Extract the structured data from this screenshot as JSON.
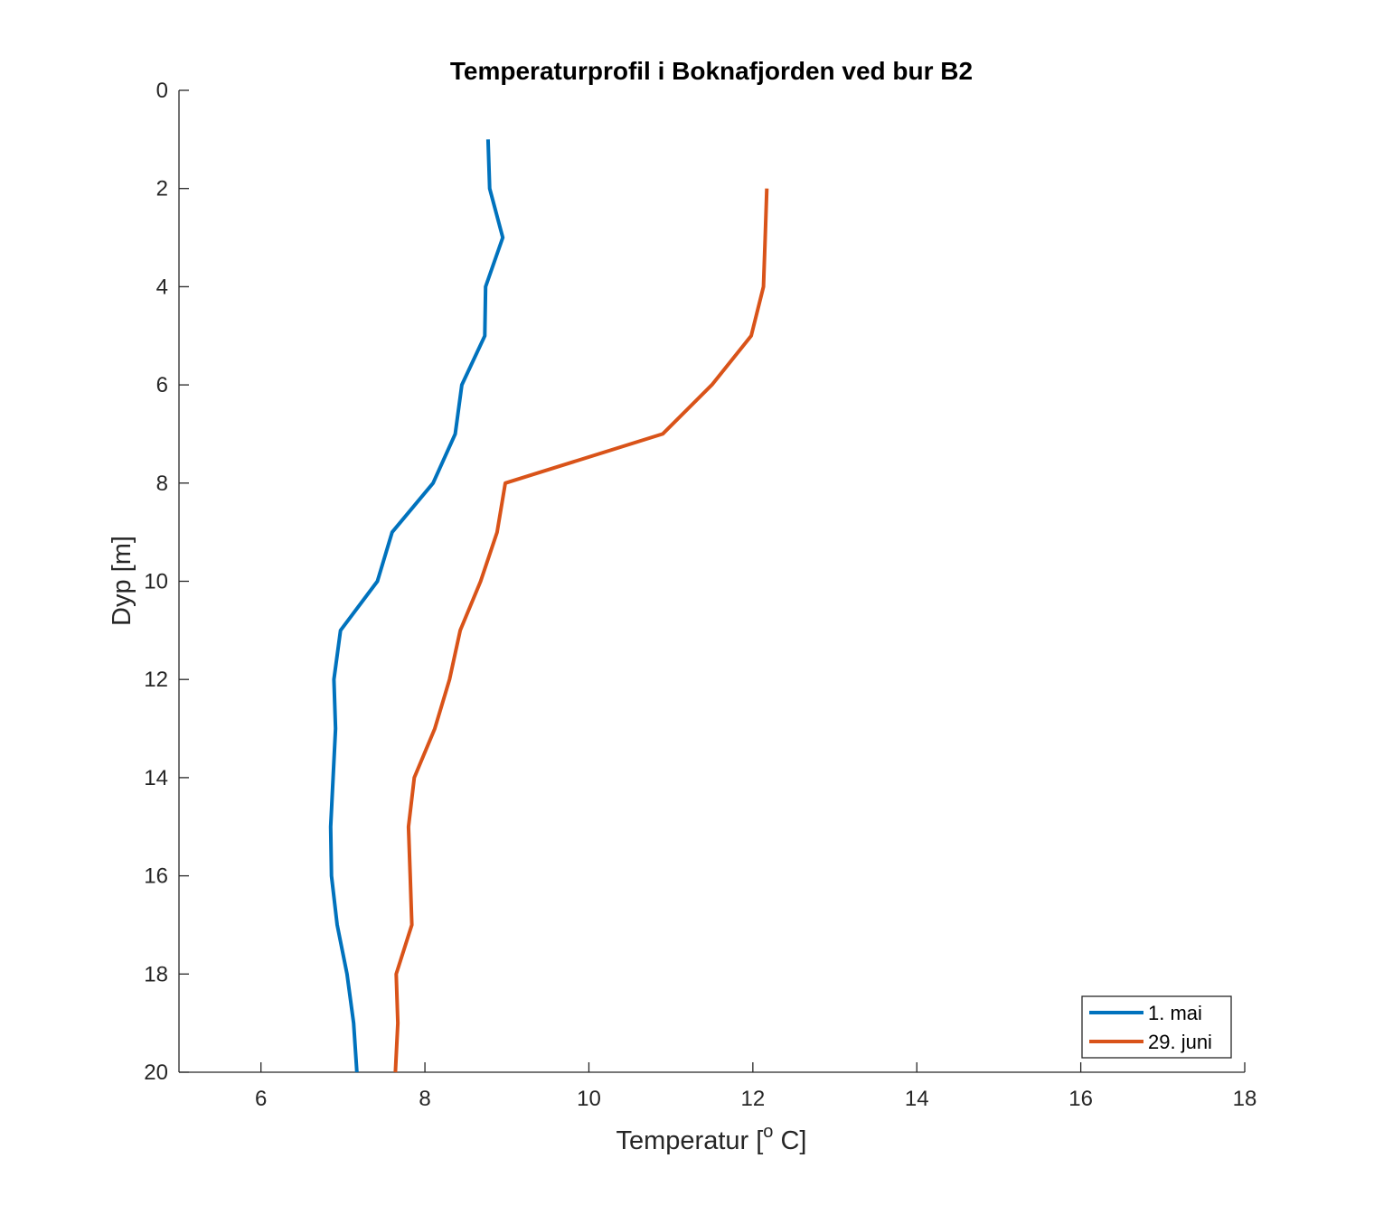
{
  "chart_data": {
    "type": "line",
    "title": "Temperaturprofil i Boknafjorden ved bur B2",
    "xlabel": {
      "main": "Temperatur [",
      "sup": "o",
      "tail": " C]"
    },
    "ylabel": "Dyp [m]",
    "xlim": [
      5,
      18
    ],
    "ylim": [
      0,
      20
    ],
    "y_reversed": true,
    "x_ticks": [
      6,
      8,
      10,
      12,
      14,
      16,
      18
    ],
    "y_ticks": [
      0,
      2,
      4,
      6,
      8,
      10,
      12,
      14,
      16,
      18,
      20
    ],
    "grid": false,
    "legend_position": "bottom-right",
    "series": [
      {
        "name": "1. mai",
        "color": "#0072BD",
        "points": [
          [
            8.77,
            1
          ],
          [
            8.79,
            2
          ],
          [
            8.95,
            3
          ],
          [
            8.74,
            4
          ],
          [
            8.73,
            5
          ],
          [
            8.45,
            6
          ],
          [
            8.37,
            7
          ],
          [
            8.1,
            8
          ],
          [
            7.6,
            9
          ],
          [
            7.42,
            10
          ],
          [
            6.97,
            11
          ],
          [
            6.89,
            12
          ],
          [
            6.91,
            13
          ],
          [
            6.88,
            14
          ],
          [
            6.85,
            15
          ],
          [
            6.86,
            16
          ],
          [
            6.93,
            17
          ],
          [
            7.05,
            18
          ],
          [
            7.13,
            19
          ],
          [
            7.17,
            20
          ]
        ]
      },
      {
        "name": "29. juni",
        "color": "#D95319",
        "points": [
          [
            12.17,
            2
          ],
          [
            12.15,
            3
          ],
          [
            12.13,
            4
          ],
          [
            11.98,
            5
          ],
          [
            11.5,
            6
          ],
          [
            10.9,
            7
          ],
          [
            8.98,
            8
          ],
          [
            8.88,
            9
          ],
          [
            8.68,
            10
          ],
          [
            8.43,
            11
          ],
          [
            8.3,
            12
          ],
          [
            8.12,
            13
          ],
          [
            7.87,
            14
          ],
          [
            7.8,
            15
          ],
          [
            7.82,
            16
          ],
          [
            7.84,
            17
          ],
          [
            7.65,
            18
          ],
          [
            7.67,
            19
          ],
          [
            7.64,
            20
          ]
        ]
      }
    ]
  }
}
